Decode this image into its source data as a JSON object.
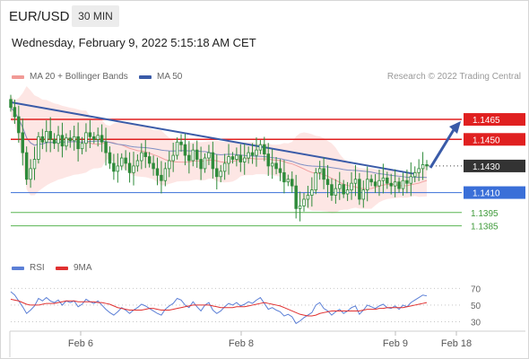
{
  "header": {
    "symbol": "EUR/USD",
    "timeframe": "30 MIN",
    "datetime": "Wednesday, February 9, 2022 5:15:18 AM CET"
  },
  "credit": "Research © 2022 Trading Central",
  "colors": {
    "candle": "#2e8b3a",
    "bollinger_fill": "#fde3e1",
    "ma20": "#f0a0a0",
    "ma50": "#7f8fc4",
    "trendline": "#3a5ba8",
    "resistance": "#e02020",
    "pivot": "#3a6fd8",
    "support": "#5ab552",
    "arrow": "#3a5ba8",
    "rsi": "#5b7fd6",
    "rsi_ma": "#e03030"
  },
  "chart_data": [
    {
      "type": "candlestick",
      "legend": [
        {
          "label": "MA 20 + Bollinger Bands",
          "color": "#f19a96"
        },
        {
          "label": "MA 50",
          "color": "#3a5ba8"
        }
      ],
      "ylim": [
        1.1378,
        1.149
      ],
      "x_ticks": [
        "Feb 6",
        "Feb 8",
        "Feb 9",
        "Feb 18"
      ],
      "levels": [
        {
          "value": 1.1465,
          "label": "1.1465",
          "kind": "resistance"
        },
        {
          "value": 1.145,
          "label": "1.1450",
          "kind": "resistance"
        },
        {
          "value": 1.143,
          "label": "1.1430",
          "kind": "last"
        },
        {
          "value": 1.141,
          "label": "1.1410",
          "kind": "pivot"
        },
        {
          "value": 1.1395,
          "label": "1.1395",
          "kind": "support"
        },
        {
          "value": 1.1385,
          "label": "1.1385",
          "kind": "support"
        }
      ],
      "close": [
        1.1474,
        1.1467,
        1.1455,
        1.144,
        1.142,
        1.1428,
        1.1435,
        1.1452,
        1.1448,
        1.1456,
        1.145,
        1.1447,
        1.1453,
        1.1445,
        1.1451,
        1.1449,
        1.1452,
        1.1443,
        1.1447,
        1.1455,
        1.1452,
        1.145,
        1.1453,
        1.1448,
        1.144,
        1.1432,
        1.1426,
        1.143,
        1.1436,
        1.1432,
        1.1425,
        1.143,
        1.1434,
        1.144,
        1.1437,
        1.1432,
        1.1428,
        1.1423,
        1.1419,
        1.1428,
        1.1434,
        1.1438,
        1.1448,
        1.1446,
        1.1438,
        1.1434,
        1.1442,
        1.1435,
        1.1428,
        1.1436,
        1.144,
        1.1428,
        1.1422,
        1.1426,
        1.1432,
        1.1437,
        1.1435,
        1.1438,
        1.1433,
        1.1436,
        1.144,
        1.1438,
        1.1442,
        1.1446,
        1.1439,
        1.143,
        1.1432,
        1.1428,
        1.1425,
        1.1418,
        1.142,
        1.1415,
        1.1398,
        1.14,
        1.1405,
        1.1408,
        1.1412,
        1.1425,
        1.1428,
        1.142,
        1.1416,
        1.1408,
        1.1413,
        1.1416,
        1.1409,
        1.1412,
        1.1417,
        1.142,
        1.1405,
        1.1412,
        1.142,
        1.1418,
        1.1415,
        1.1419,
        1.1421,
        1.1417,
        1.1415,
        1.1418,
        1.1413,
        1.1419,
        1.1417,
        1.1422,
        1.1425,
        1.1428,
        1.1431,
        1.143
      ],
      "rsi": {
        "yticks": [
          70,
          50,
          30
        ],
        "ylim": [
          22,
          80
        ],
        "legend": [
          {
            "label": "RSI",
            "color": "#5b7fd6"
          },
          {
            "label": "9MA",
            "color": "#e03030"
          }
        ],
        "rsi": [
          66,
          62,
          55,
          48,
          40,
          44,
          49,
          58,
          55,
          59,
          55,
          53,
          56,
          50,
          55,
          53,
          55,
          48,
          51,
          57,
          54,
          52,
          55,
          50,
          45,
          41,
          38,
          42,
          47,
          44,
          40,
          44,
          47,
          51,
          49,
          46,
          43,
          40,
          38,
          45,
          49,
          52,
          58,
          56,
          50,
          47,
          54,
          48,
          43,
          50,
          53,
          44,
          40,
          43,
          48,
          52,
          50,
          53,
          49,
          51,
          54,
          52,
          56,
          59,
          52,
          45,
          47,
          44,
          42,
          37,
          39,
          36,
          28,
          31,
          35,
          38,
          41,
          50,
          53,
          46,
          43,
          38,
          42,
          45,
          40,
          43,
          47,
          49,
          39,
          44,
          50,
          48,
          46,
          49,
          51,
          47,
          46,
          49,
          45,
          50,
          48,
          53,
          56,
          59,
          62,
          61
        ],
        "ma": [
          57,
          56,
          55,
          53,
          51,
          50,
          50,
          50,
          51,
          52,
          52,
          52,
          53,
          54,
          55,
          55,
          55,
          54,
          54,
          54,
          54,
          54,
          53,
          53,
          52,
          51,
          49,
          47,
          46,
          45,
          44,
          44,
          44,
          44,
          45,
          46,
          46,
          45,
          44,
          44,
          44,
          45,
          46,
          47,
          48,
          49,
          50,
          50,
          50,
          50,
          50,
          49,
          48,
          47,
          47,
          47,
          47,
          48,
          48,
          48,
          49,
          50,
          51,
          52,
          53,
          52,
          51,
          50,
          49,
          47,
          45,
          43,
          41,
          39,
          38,
          37,
          37,
          38,
          40,
          41,
          42,
          43,
          43,
          43,
          43,
          43,
          43,
          43,
          43,
          44,
          45,
          45,
          45,
          46,
          46,
          47,
          47,
          47,
          47,
          47,
          48,
          49,
          50,
          51,
          52,
          53
        ]
      }
    }
  ]
}
